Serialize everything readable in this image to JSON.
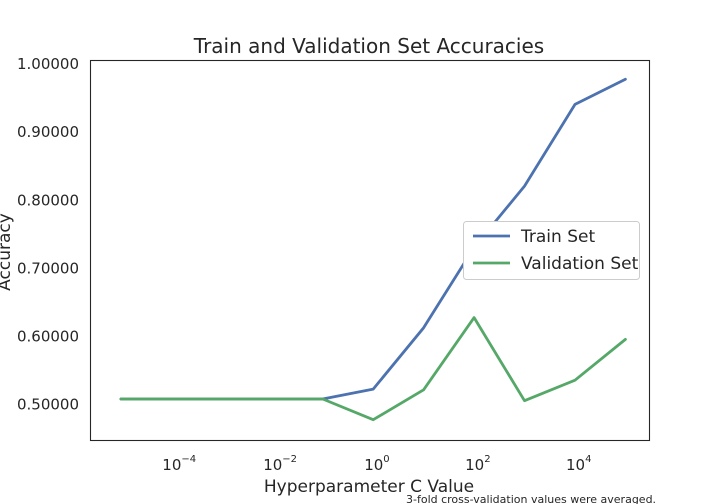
{
  "chart_data": {
    "type": "line",
    "title": "Train and Validation Set Accuracies",
    "xlabel": "Hyperparameter C Value",
    "ylabel": "Accuracy",
    "x_scale": "log",
    "x": [
      1e-05,
      0.0001,
      0.001,
      0.01,
      0.1,
      1,
      10,
      100,
      1000,
      10000,
      100000
    ],
    "xlim": [
      2.5e-06,
      300000
    ],
    "ylim": [
      0.4465,
      1.0045
    ],
    "x_ticks": [
      {
        "value": 0.0001,
        "base": "10",
        "exp": "−4"
      },
      {
        "value": 0.01,
        "base": "10",
        "exp": "−2"
      },
      {
        "value": 1,
        "base": "10",
        "exp": "0"
      },
      {
        "value": 100,
        "base": "10",
        "exp": "2"
      },
      {
        "value": 10000,
        "base": "10",
        "exp": "4"
      }
    ],
    "y_ticks": [
      {
        "value": 0.5,
        "label": "0.50000"
      },
      {
        "value": 0.6,
        "label": "0.60000"
      },
      {
        "value": 0.7,
        "label": "0.70000"
      },
      {
        "value": 0.8,
        "label": "0.80000"
      },
      {
        "value": 0.9,
        "label": "0.90000"
      },
      {
        "value": 1.0,
        "label": "1.00000"
      }
    ],
    "series": [
      {
        "name": "Train Set",
        "color": "#4c72b0",
        "values": [
          0.5075,
          0.5075,
          0.5075,
          0.5075,
          0.5075,
          0.522,
          0.612,
          0.73,
          0.82,
          0.94,
          0.977
        ]
      },
      {
        "name": "Validation Set",
        "color": "#55a868",
        "values": [
          0.5075,
          0.5075,
          0.5075,
          0.5075,
          0.5075,
          0.477,
          0.521,
          0.627,
          0.505,
          0.535,
          0.595
        ]
      }
    ],
    "grid": false,
    "legend_position": "center-right",
    "annotation": "3-fold cross-validation values were averaged."
  }
}
